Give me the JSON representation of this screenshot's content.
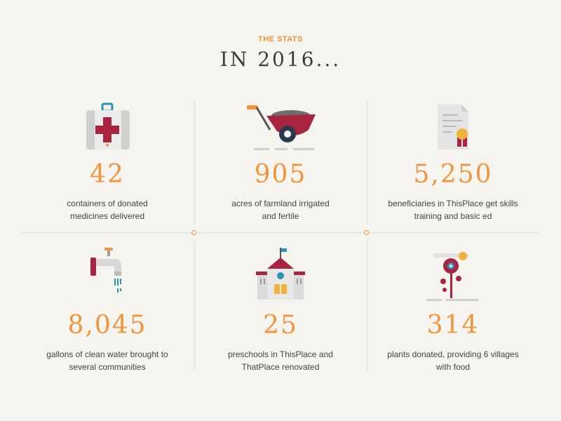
{
  "header": {
    "eyebrow": "THE STATS",
    "title": "IN 2016..."
  },
  "colors": {
    "accent": "#f0953d",
    "crimson": "#a8243f",
    "grey": "#cfcfcf",
    "background": "#f5f4ef"
  },
  "stats": [
    {
      "icon": "first-aid-kit-icon",
      "value": "42",
      "line1": "containers of donated",
      "line2": "medicines delivered"
    },
    {
      "icon": "wheelbarrow-icon",
      "value": "905",
      "line1": "acres of farmland irrigated",
      "line2": "and fertile"
    },
    {
      "icon": "certificate-icon",
      "value": "5,250",
      "line1": "beneficiaries in ThisPlace get skills",
      "line2": "training and basic ed"
    },
    {
      "icon": "water-faucet-icon",
      "value": "8,045",
      "line1": "gallons of clean water brought to",
      "line2": "several communities"
    },
    {
      "icon": "schoolhouse-icon",
      "value": "25",
      "line1": "preschools in ThisPlace and",
      "line2": "ThatPlace renovated"
    },
    {
      "icon": "flower-plant-icon",
      "value": "314",
      "line1": "plants donated, providing 6 villages",
      "line2": "with food"
    }
  ]
}
